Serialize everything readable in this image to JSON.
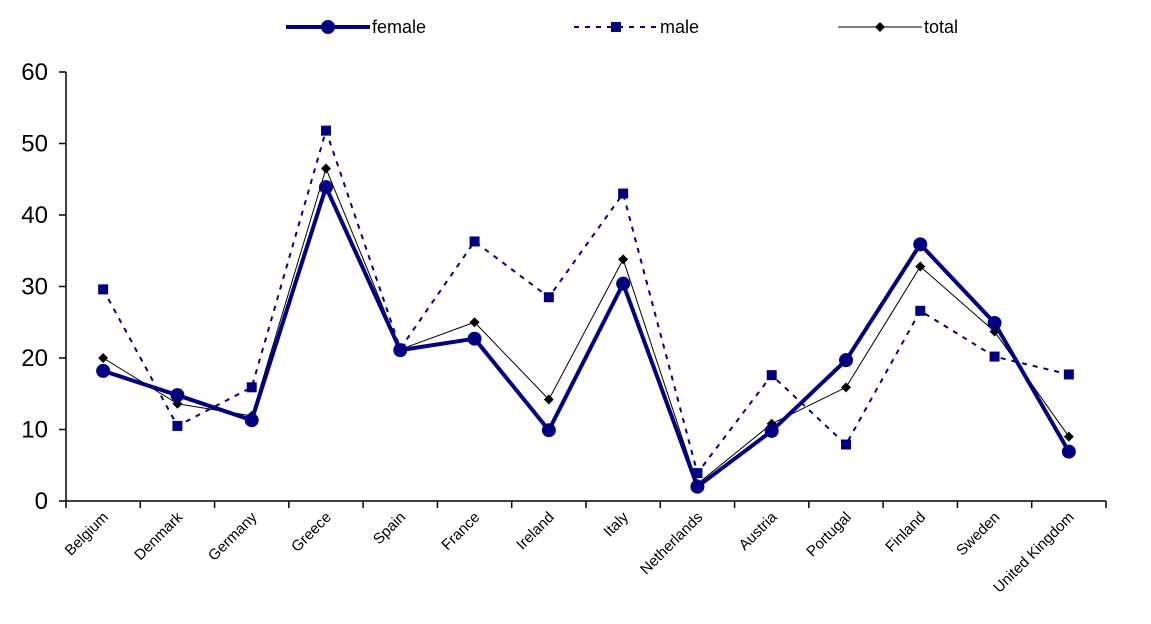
{
  "chart_data": {
    "type": "line",
    "categories": [
      "Belgium",
      "Denmark",
      "Germany",
      "Greece",
      "Spain",
      "France",
      "Ireland",
      "Italy",
      "Netherlands",
      "Austria",
      "Portugal",
      "Finland",
      "Sweden",
      "United Kingdom"
    ],
    "series": [
      {
        "name": "female",
        "values": [
          18.2,
          14.8,
          11.3,
          43.9,
          21.1,
          22.7,
          9.9,
          30.4,
          2.0,
          9.8,
          19.7,
          35.9,
          24.9,
          6.9
        ],
        "color": "#000080",
        "style": "solid-thick",
        "marker": "circle"
      },
      {
        "name": "male",
        "values": [
          29.6,
          10.5,
          15.9,
          51.8,
          21.3,
          36.3,
          28.5,
          43.0,
          3.9,
          17.6,
          7.9,
          26.6,
          20.2,
          17.7
        ],
        "color": "#000080",
        "style": "dotted",
        "marker": "square"
      },
      {
        "name": "total",
        "values": [
          20.0,
          13.6,
          11.9,
          46.5,
          21.2,
          25.0,
          14.2,
          33.8,
          2.4,
          10.8,
          15.9,
          32.8,
          23.7,
          9.0
        ],
        "color": "#000000",
        "style": "thin",
        "marker": "diamond"
      }
    ],
    "yticks": [
      0,
      10,
      20,
      30,
      40,
      50,
      60
    ],
    "ylim": [
      0,
      60
    ],
    "title": "",
    "xlabel": "",
    "ylabel": "",
    "grid": false,
    "legend_position": "top"
  }
}
